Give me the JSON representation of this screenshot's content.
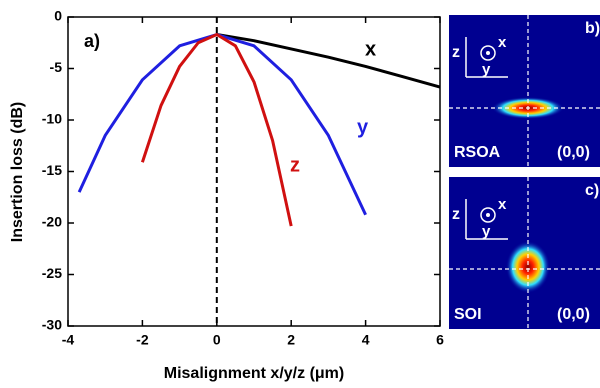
{
  "chart_data": {
    "type": "line",
    "annotation": "a)",
    "x_label": "Misalignment x/y/z (μm)",
    "y_label": "Insertion loss (dB)",
    "xlim": [
      -4,
      6
    ],
    "xticks": [
      -4,
      -2,
      0,
      2,
      4,
      6
    ],
    "ylim": [
      -30,
      0
    ],
    "yticks": [
      0,
      -5,
      -10,
      -15,
      -20,
      -25,
      -30
    ],
    "series": [
      {
        "name": "x",
        "color": "#000000",
        "x": [
          0,
          1,
          2,
          3,
          4,
          5,
          6
        ],
        "values": [
          -1.7,
          -2.3,
          -3.1,
          -3.9,
          -4.8,
          -5.8,
          -6.8
        ]
      },
      {
        "name": "y",
        "color": "#1f1fe0",
        "x": [
          -3.7,
          -3,
          -2,
          -1,
          0,
          1,
          2,
          3,
          4
        ],
        "values": [
          -17,
          -11.5,
          -6.1,
          -2.8,
          -1.7,
          -2.8,
          -6.1,
          -11.5,
          -19.2
        ]
      },
      {
        "name": "z",
        "color": "#d01010",
        "x": [
          -2,
          -1.5,
          -1,
          -0.5,
          0,
          0.5,
          1,
          1.5,
          2
        ],
        "values": [
          -14.1,
          -8.6,
          -4.8,
          -2.5,
          -1.7,
          -2.8,
          -6.3,
          -12,
          -20.3
        ]
      }
    ]
  },
  "panels": [
    {
      "label": "b)",
      "axis_z": "z",
      "axis_x": "x",
      "axis_y": "y",
      "material": "RSOA",
      "origin": "(0,0)"
    },
    {
      "label": "c)",
      "axis_z": "z",
      "axis_x": "x",
      "axis_y": "y",
      "material": "SOI",
      "origin": "(0,0)"
    }
  ]
}
